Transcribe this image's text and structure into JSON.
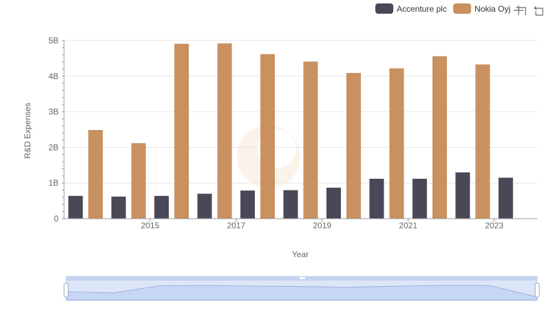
{
  "chart_data": {
    "type": "bar",
    "title": "",
    "xlabel": "Year",
    "ylabel": "R&D Expenses",
    "ylim": [
      0,
      5000000000
    ],
    "y_ticks": [
      "0",
      "1B",
      "2B",
      "3B",
      "4B",
      "5B"
    ],
    "x_tick_labels": [
      "2015",
      "2017",
      "2019",
      "2021",
      "2023"
    ],
    "categories": [
      "2014",
      "2015",
      "2016",
      "2017",
      "2018",
      "2019",
      "2020",
      "2021",
      "2022",
      "2023",
      "2024"
    ],
    "series": [
      {
        "name": "Accenture plc",
        "color": "#484857",
        "values": [
          640000000,
          620000000,
          640000000,
          700000000,
          790000000,
          800000000,
          870000000,
          1120000000,
          1120000000,
          1300000000,
          1150000000
        ]
      },
      {
        "name": "Nokia Oyj",
        "color": "#c8915f",
        "values": [
          2490000000,
          2120000000,
          4910000000,
          4920000000,
          4620000000,
          4410000000,
          4090000000,
          4220000000,
          4560000000,
          4330000000,
          null
        ]
      }
    ],
    "legend_position": "top-right"
  },
  "toolbar": {
    "zoom_icon": "zoom-icon",
    "restore_icon": "restore-icon"
  }
}
